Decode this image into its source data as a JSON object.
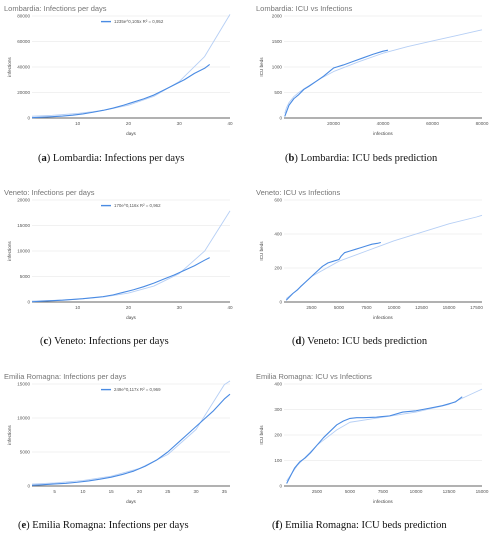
{
  "panels": [
    {
      "id": "a",
      "title": "Lombardia: Infections per days",
      "xlabel": "days",
      "ylabel": "infections",
      "caption_letter": "a",
      "caption_text": "Lombardia: Infections per days",
      "legend": "1235e^0,105x R² = 0,952",
      "colors": {
        "actual": "#4a8be3",
        "fit": "#b6cff5"
      }
    },
    {
      "id": "b",
      "title": "Lombardia: ICU vs Infections",
      "xlabel": "infections",
      "ylabel": "ICU beds",
      "caption_letter": "b",
      "caption_text": "Lombardia: ICU beds prediction",
      "colors": {
        "actual": "#4a8be3",
        "fit": "#b6cff5"
      }
    },
    {
      "id": "c",
      "title": "Veneto: Infections per days",
      "xlabel": "days",
      "ylabel": "infections",
      "caption_letter": "c",
      "caption_text": "Veneto: Infections per days",
      "legend": "170e^0,116x R² = 0,962",
      "colors": {
        "actual": "#4a8be3",
        "fit": "#b6cff5"
      }
    },
    {
      "id": "d",
      "title": "Veneto: ICU vs Infections",
      "xlabel": "infections",
      "ylabel": "ICU beds",
      "caption_letter": "d",
      "caption_text": "Veneto: ICU beds prediction",
      "colors": {
        "actual": "#4a8be3",
        "fit": "#b6cff5"
      }
    },
    {
      "id": "e",
      "title": "Emilia Romagna: Infections per days",
      "xlabel": "days",
      "ylabel": "infections",
      "caption_letter": "e",
      "caption_text": "Emilia Romagna: Infections per days",
      "legend": "249e^0,117x R² = 0,969",
      "colors": {
        "actual": "#4a8be3",
        "fit": "#b6cff5"
      }
    },
    {
      "id": "f",
      "title": "Emilia Romagna: ICU vs Infections",
      "xlabel": "infections",
      "ylabel": "ICU beds",
      "caption_letter": "f",
      "caption_text": "Emilia Romagna: ICU beds prediction",
      "colors": {
        "actual": "#4a8be3",
        "fit": "#b6cff5"
      }
    }
  ],
  "chart_data": [
    {
      "type": "line",
      "title": "Lombardia: Infections per days",
      "xlabel": "days",
      "ylabel": "infections",
      "xlim": [
        1,
        40
      ],
      "ylim": [
        0,
        80000
      ],
      "xticks": [
        10,
        20,
        30,
        40
      ],
      "yticks": [
        0,
        20000,
        40000,
        60000,
        80000
      ],
      "legend": "1235e^0,105x R² = 0,952",
      "series": [
        {
          "x": [
            1,
            3,
            5,
            7,
            9,
            11,
            13,
            15,
            17,
            19,
            21,
            23,
            25,
            27,
            29,
            31,
            33,
            35,
            36
          ],
          "values": [
            250,
            600,
            1000,
            1500,
            2200,
            3200,
            4500,
            6000,
            7800,
            10000,
            12500,
            15000,
            18000,
            22000,
            26000,
            30000,
            35000,
            39000,
            42000
          ]
        },
        {
          "x": [
            1,
            5,
            10,
            15,
            20,
            25,
            30,
            35,
            40
          ],
          "values": [
            1372,
            2100,
            3540,
            5970,
            10060,
            16960,
            28600,
            48200,
            81260
          ]
        }
      ]
    },
    {
      "type": "line",
      "title": "Lombardia: ICU vs Infections",
      "xlabel": "infections",
      "ylabel": "ICU beds",
      "xlim": [
        0,
        80000
      ],
      "ylim": [
        0,
        2000
      ],
      "xticks": [
        20000,
        40000,
        60000,
        80000
      ],
      "yticks": [
        0,
        500,
        1000,
        1500,
        2000
      ],
      "series": [
        {
          "x": [
            300,
            1000,
            2000,
            4000,
            6000,
            8000,
            10000,
            13000,
            16000,
            20000,
            24000,
            28000,
            32000,
            36000,
            40000,
            42000
          ],
          "values": [
            30,
            120,
            250,
            380,
            460,
            560,
            620,
            720,
            820,
            980,
            1040,
            1110,
            1180,
            1250,
            1310,
            1330
          ]
        },
        {
          "x": [
            300,
            1000,
            2000,
            4000,
            6000,
            8000,
            10000,
            15000,
            20000,
            30000,
            40000,
            50000,
            60000,
            70000,
            80000
          ],
          "values": [
            90,
            200,
            300,
            420,
            500,
            570,
            630,
            780,
            910,
            1100,
            1270,
            1400,
            1510,
            1620,
            1730
          ]
        }
      ]
    },
    {
      "type": "line",
      "title": "Veneto: Infections per days",
      "xlabel": "days",
      "ylabel": "infections",
      "xlim": [
        1,
        40
      ],
      "ylim": [
        0,
        20000
      ],
      "xticks": [
        10,
        20,
        30,
        40
      ],
      "yticks": [
        0,
        5000,
        10000,
        15000,
        20000
      ],
      "legend": "170e^0,116x R² = 0,962",
      "series": [
        {
          "x": [
            1,
            3,
            5,
            7,
            9,
            11,
            13,
            15,
            17,
            19,
            21,
            23,
            25,
            27,
            29,
            31,
            33,
            35,
            36
          ],
          "values": [
            50,
            150,
            250,
            350,
            500,
            650,
            850,
            1050,
            1400,
            1900,
            2400,
            3000,
            3700,
            4500,
            5300,
            6200,
            7100,
            8200,
            8700
          ]
        },
        {
          "x": [
            1,
            5,
            10,
            15,
            20,
            25,
            30,
            35,
            40
          ],
          "values": [
            191,
            304,
            544,
            974,
            1743,
            3119,
            5580,
            9985,
            17860
          ]
        }
      ]
    },
    {
      "type": "line",
      "title": "Veneto: ICU vs Infections",
      "xlabel": "infections",
      "ylabel": "ICU beds",
      "xlim": [
        0,
        18000
      ],
      "ylim": [
        0,
        600
      ],
      "xticks": [
        2500,
        5000,
        7500,
        10000,
        12500,
        15000,
        17500
      ],
      "yticks": [
        0,
        200,
        400,
        600
      ],
      "series": [
        {
          "x": [
            200,
            500,
            800,
            1200,
            1500,
            2000,
            2500,
            3000,
            3500,
            4000,
            4500,
            5000,
            5200,
            5500,
            6000,
            6500,
            7000,
            7500,
            8000,
            8500,
            8800
          ],
          "values": [
            10,
            30,
            50,
            70,
            90,
            120,
            150,
            180,
            210,
            230,
            240,
            250,
            270,
            290,
            300,
            310,
            320,
            330,
            340,
            345,
            350
          ]
        },
        {
          "x": [
            200,
            1000,
            2500,
            5000,
            7500,
            10000,
            12500,
            15000,
            17500,
            18000
          ],
          "values": [
            20,
            60,
            150,
            240,
            300,
            360,
            410,
            460,
            500,
            510
          ]
        }
      ]
    },
    {
      "type": "line",
      "title": "Emilia Romagna: Infections per days",
      "xlabel": "days",
      "ylabel": "infections",
      "xlim": [
        1,
        36
      ],
      "ylim": [
        0,
        15000
      ],
      "xticks": [
        5,
        10,
        15,
        20,
        25,
        30,
        35
      ],
      "yticks": [
        0,
        5000,
        10000,
        15000
      ],
      "legend": "249e^0,117x R² = 0,969",
      "series": [
        {
          "x": [
            1,
            3,
            5,
            7,
            9,
            11,
            13,
            15,
            17,
            19,
            21,
            23,
            25,
            27,
            29,
            31,
            33,
            35,
            36
          ],
          "values": [
            100,
            200,
            300,
            400,
            550,
            750,
            1000,
            1300,
            1700,
            2200,
            2900,
            3800,
            5000,
            6500,
            8000,
            9500,
            11000,
            12800,
            13500
          ]
        },
        {
          "x": [
            1,
            5,
            10,
            15,
            20,
            25,
            30,
            35,
            36
          ],
          "values": [
            280,
            447,
            802,
            1439,
            2582,
            4632,
            8310,
            14910,
            16760
          ]
        }
      ]
    },
    {
      "type": "line",
      "title": "Emilia Romagna: ICU vs Infections",
      "xlabel": "infections",
      "ylabel": "ICU beds",
      "xlim": [
        0,
        15000
      ],
      "ylim": [
        0,
        400
      ],
      "xticks": [
        2500,
        5000,
        7500,
        10000,
        12500,
        15000
      ],
      "yticks": [
        0,
        100,
        200,
        300,
        400
      ],
      "series": [
        {
          "x": [
            200,
            500,
            800,
            1200,
            1600,
            2000,
            2500,
            3000,
            3500,
            4000,
            4500,
            5000,
            5500,
            6000,
            7000,
            8000,
            9000,
            10000,
            11000,
            12000,
            13000,
            13500
          ],
          "values": [
            10,
            40,
            70,
            95,
            110,
            130,
            160,
            190,
            215,
            240,
            255,
            265,
            268,
            268,
            270,
            275,
            290,
            295,
            305,
            315,
            330,
            350
          ]
        },
        {
          "x": [
            200,
            1000,
            2500,
            4000,
            5000,
            7500,
            10000,
            12500,
            15000
          ],
          "values": [
            20,
            80,
            160,
            220,
            250,
            270,
            290,
            320,
            380
          ]
        }
      ]
    }
  ]
}
